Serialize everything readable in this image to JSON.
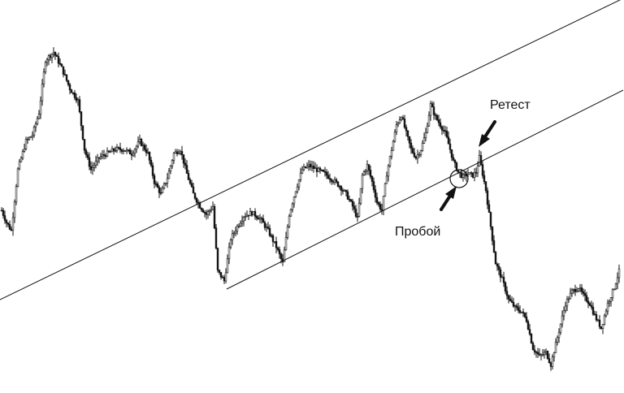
{
  "chart_data": {
    "type": "candlestick",
    "title": "",
    "xlabel": "",
    "ylabel": "",
    "grid": false,
    "legend": "none",
    "price_range": [
      0,
      484
    ],
    "colors": {
      "candle": "#111111",
      "line": "#111111",
      "background": "#ffffff"
    },
    "annotations": {
      "retest": "Ретест",
      "breakout": "Пробой"
    },
    "trendlines": [
      {
        "name": "channel-upper",
        "points": [
          [
            0,
            115
          ],
          [
            767,
            486
          ]
        ]
      },
      {
        "name": "channel-lower",
        "points": [
          [
            279,
            128
          ],
          [
            767,
            373
          ]
        ]
      }
    ],
    "path_points": [
      [
        2,
        225
      ],
      [
        8,
        210
      ],
      [
        14,
        200
      ],
      [
        22,
        275
      ],
      [
        32,
        310
      ],
      [
        40,
        318
      ],
      [
        48,
        345
      ],
      [
        56,
        410
      ],
      [
        66,
        420
      ],
      [
        76,
        400
      ],
      [
        86,
        375
      ],
      [
        96,
        360
      ],
      [
        104,
        300
      ],
      [
        112,
        275
      ],
      [
        122,
        290
      ],
      [
        132,
        295
      ],
      [
        142,
        300
      ],
      [
        152,
        300
      ],
      [
        162,
        295
      ],
      [
        172,
        310
      ],
      [
        182,
        295
      ],
      [
        190,
        260
      ],
      [
        198,
        245
      ],
      [
        206,
        265
      ],
      [
        214,
        295
      ],
      [
        222,
        300
      ],
      [
        230,
        270
      ],
      [
        238,
        245
      ],
      [
        246,
        230
      ],
      [
        254,
        220
      ],
      [
        262,
        230
      ],
      [
        268,
        150
      ],
      [
        276,
        138
      ],
      [
        284,
        190
      ],
      [
        292,
        205
      ],
      [
        300,
        218
      ],
      [
        310,
        222
      ],
      [
        320,
        215
      ],
      [
        330,
        200
      ],
      [
        340,
        180
      ],
      [
        348,
        160
      ],
      [
        356,
        220
      ],
      [
        364,
        250
      ],
      [
        372,
        275
      ],
      [
        380,
        280
      ],
      [
        390,
        275
      ],
      [
        400,
        270
      ],
      [
        410,
        262
      ],
      [
        418,
        255
      ],
      [
        426,
        245
      ],
      [
        434,
        230
      ],
      [
        440,
        215
      ],
      [
        446,
        268
      ],
      [
        452,
        280
      ],
      [
        458,
        260
      ],
      [
        464,
        235
      ],
      [
        470,
        225
      ],
      [
        476,
        270
      ],
      [
        482,
        300
      ],
      [
        488,
        330
      ],
      [
        494,
        342
      ],
      [
        500,
        320
      ],
      [
        506,
        300
      ],
      [
        512,
        290
      ],
      [
        518,
        300
      ],
      [
        524,
        320
      ],
      [
        530,
        355
      ],
      [
        536,
        340
      ],
      [
        542,
        330
      ],
      [
        548,
        320
      ],
      [
        554,
        300
      ],
      [
        558,
        285
      ],
      [
        564,
        272
      ],
      [
        570,
        266
      ],
      [
        576,
        270
      ],
      [
        582,
        268
      ],
      [
        586,
        272
      ],
      [
        590,
        290
      ],
      [
        594,
        270
      ],
      [
        598,
        250
      ],
      [
        604,
        205
      ],
      [
        610,
        160
      ],
      [
        618,
        140
      ],
      [
        626,
        115
      ],
      [
        634,
        105
      ],
      [
        642,
        100
      ],
      [
        648,
        90
      ],
      [
        656,
        55
      ],
      [
        664,
        45
      ],
      [
        672,
        50
      ],
      [
        678,
        35
      ],
      [
        684,
        60
      ],
      [
        690,
        85
      ],
      [
        696,
        110
      ],
      [
        704,
        125
      ],
      [
        712,
        130
      ],
      [
        718,
        120
      ],
      [
        726,
        110
      ],
      [
        732,
        95
      ],
      [
        740,
        80
      ],
      [
        748,
        110
      ],
      [
        756,
        130
      ],
      [
        762,
        150
      ]
    ]
  }
}
